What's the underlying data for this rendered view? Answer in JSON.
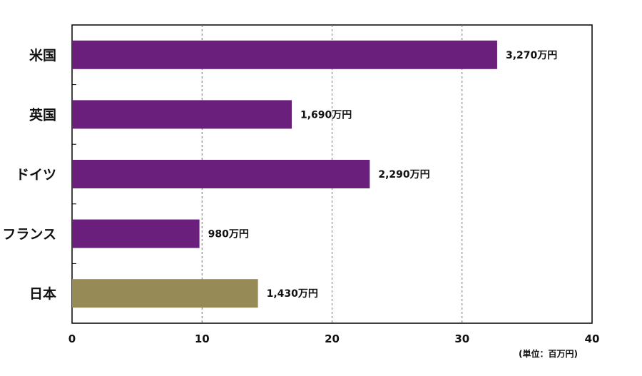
{
  "chart_data": {
    "type": "bar",
    "orientation": "horizontal",
    "categories": [
      "米国",
      "英国",
      "ドイツ",
      "フランス",
      "日本"
    ],
    "values": [
      32.7,
      16.9,
      22.9,
      9.8,
      14.3
    ],
    "data_labels": [
      "3,270万円",
      "1,690万円",
      "2,290万円",
      "980万円",
      "1,430万円"
    ],
    "colors": [
      "#6b1f7d",
      "#6b1f7d",
      "#6b1f7d",
      "#6b1f7d",
      "#968a57"
    ],
    "xlim": [
      0,
      40
    ],
    "x_ticks": [
      0,
      10,
      20,
      30,
      40
    ],
    "x_tick_labels": [
      "0",
      "10",
      "20",
      "30",
      "40"
    ],
    "unit_label": "(単位：百万円)",
    "grid": "vertical-dashed"
  }
}
